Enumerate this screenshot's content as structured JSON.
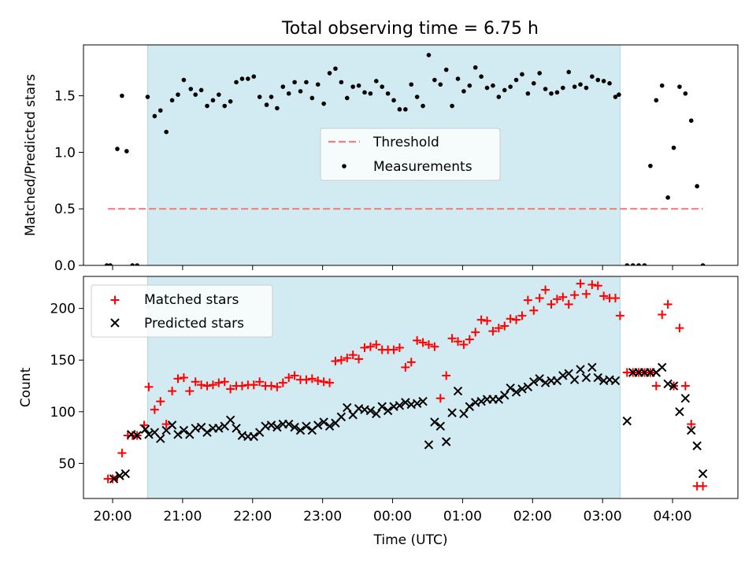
{
  "title": "Total observing time = 6.75 h",
  "colors": {
    "shade": "#add8e6",
    "threshold": "#f08080",
    "measurements": "#000000",
    "matched": "#ff0000",
    "predicted": "#000000"
  },
  "chart_data": [
    {
      "type": "scatter",
      "panel": "top",
      "title": "Total observing time = 6.75 h",
      "xlabel": "",
      "ylabel": "Matched/Predicted stars",
      "xlim": [
        "19:35",
        "04:56"
      ],
      "ylim": [
        0,
        1.95
      ],
      "yticks": [
        0.0,
        0.5,
        1.0,
        1.5
      ],
      "ytick_labels": [
        "0.0",
        "0.5",
        "1.0",
        "1.5"
      ],
      "shaded_interval": [
        "20:30",
        "03:15"
      ],
      "legend": {
        "placement": "center",
        "entries": [
          "Threshold",
          "Measurements"
        ]
      },
      "threshold": {
        "name": "Threshold",
        "style": "dashed",
        "value": 0.5,
        "x_range": [
          "19:56",
          "04:26"
        ]
      },
      "measurements": {
        "name": "Measurements",
        "x": [
          "19:55",
          "19:58",
          "20:04",
          "20:08",
          "20:12",
          "20:17",
          "20:21",
          "20:30",
          "20:36",
          "20:41",
          "20:46",
          "20:51",
          "20:56",
          "21:01",
          "21:07",
          "21:11",
          "21:16",
          "21:21",
          "21:26",
          "21:31",
          "21:36",
          "21:41",
          "21:46",
          "21:51",
          "21:56",
          "22:01",
          "22:06",
          "22:12",
          "22:16",
          "22:21",
          "22:26",
          "22:31",
          "22:36",
          "22:41",
          "22:46",
          "22:51",
          "22:56",
          "23:01",
          "23:06",
          "23:11",
          "23:16",
          "23:21",
          "23:26",
          "23:31",
          "23:36",
          "23:41",
          "23:46",
          "23:51",
          "23:56",
          "00:01",
          "00:06",
          "00:11",
          "00:16",
          "00:21",
          "00:26",
          "00:31",
          "00:36",
          "00:41",
          "00:46",
          "00:51",
          "00:56",
          "01:01",
          "01:06",
          "01:11",
          "01:16",
          "01:21",
          "01:26",
          "01:31",
          "01:36",
          "01:41",
          "01:46",
          "01:51",
          "01:56",
          "02:01",
          "02:06",
          "02:11",
          "02:16",
          "02:21",
          "02:26",
          "02:31",
          "02:36",
          "02:41",
          "02:46",
          "02:51",
          "02:56",
          "03:01",
          "03:06",
          "03:11",
          "03:14",
          "03:21",
          "03:26",
          "03:31",
          "03:36",
          "03:41",
          "03:46",
          "03:51",
          "03:56",
          "04:01",
          "04:06",
          "04:11",
          "04:16",
          "04:21",
          "04:26"
        ],
        "y": [
          0.0,
          0.0,
          1.03,
          1.5,
          1.01,
          0.0,
          0.0,
          1.49,
          1.32,
          1.37,
          1.18,
          1.46,
          1.51,
          1.64,
          1.56,
          1.51,
          1.55,
          1.41,
          1.46,
          1.51,
          1.41,
          1.45,
          1.62,
          1.65,
          1.65,
          1.67,
          1.49,
          1.42,
          1.49,
          1.39,
          1.58,
          1.52,
          1.62,
          1.54,
          1.62,
          1.48,
          1.6,
          1.43,
          1.7,
          1.74,
          1.62,
          1.48,
          1.58,
          1.59,
          1.53,
          1.52,
          1.63,
          1.58,
          1.52,
          1.46,
          1.38,
          1.38,
          1.6,
          1.49,
          1.41,
          1.86,
          1.64,
          1.6,
          1.73,
          1.41,
          1.65,
          1.54,
          1.59,
          1.75,
          1.67,
          1.57,
          1.59,
          1.49,
          1.55,
          1.58,
          1.64,
          1.69,
          1.52,
          1.61,
          1.7,
          1.56,
          1.52,
          1.53,
          1.57,
          1.71,
          1.58,
          1.6,
          1.57,
          1.67,
          1.64,
          1.63,
          1.61,
          1.49,
          1.51,
          0.0,
          0.0,
          0.0,
          0.0,
          0.88,
          1.46,
          1.59,
          0.6,
          1.04,
          1.58,
          1.52,
          1.28,
          0.7,
          0.0
        ]
      }
    },
    {
      "type": "scatter",
      "panel": "bottom",
      "xlabel": "Time (UTC)",
      "ylabel": "Count",
      "xlim": [
        "19:35",
        "04:56"
      ],
      "ylim": [
        16,
        231
      ],
      "xticks": [
        "20:00",
        "21:00",
        "22:00",
        "23:00",
        "00:00",
        "01:00",
        "02:00",
        "03:00",
        "04:00"
      ],
      "yticks": [
        50,
        100,
        150,
        200
      ],
      "ytick_labels": [
        "50",
        "100",
        "150",
        "200"
      ],
      "shaded_interval": [
        "20:30",
        "03:15"
      ],
      "legend": {
        "placement": "top-left",
        "entries": [
          "Matched stars",
          "Predicted stars"
        ]
      },
      "series": [
        {
          "name": "Matched stars",
          "marker": "plus",
          "x": [
            "19:56",
            "20:00",
            "20:04",
            "20:08",
            "20:13",
            "20:17",
            "20:21",
            "20:27",
            "20:31",
            "20:36",
            "20:41",
            "20:46",
            "20:51",
            "20:56",
            "21:01",
            "21:06",
            "21:11",
            "21:16",
            "21:21",
            "21:26",
            "21:31",
            "21:36",
            "21:41",
            "21:46",
            "21:51",
            "21:56",
            "22:01",
            "22:06",
            "22:11",
            "22:16",
            "22:21",
            "22:26",
            "22:31",
            "22:36",
            "22:41",
            "22:46",
            "22:51",
            "22:56",
            "23:01",
            "23:06",
            "23:11",
            "23:16",
            "23:21",
            "23:26",
            "23:31",
            "23:36",
            "23:41",
            "23:46",
            "23:51",
            "23:56",
            "00:01",
            "00:06",
            "00:11",
            "00:16",
            "00:21",
            "00:26",
            "00:31",
            "00:36",
            "00:41",
            "00:46",
            "00:51",
            "00:56",
            "01:01",
            "01:06",
            "01:11",
            "01:16",
            "01:21",
            "01:26",
            "01:31",
            "01:36",
            "01:41",
            "01:46",
            "01:51",
            "01:56",
            "02:01",
            "02:06",
            "02:11",
            "02:16",
            "02:21",
            "02:26",
            "02:31",
            "02:36",
            "02:41",
            "02:46",
            "02:51",
            "02:56",
            "03:01",
            "03:06",
            "03:11",
            "03:15",
            "03:21",
            "03:26",
            "03:31",
            "03:36",
            "03:41",
            "03:46",
            "03:51",
            "03:56",
            "04:01",
            "04:06",
            "04:11",
            "04:16",
            "04:21",
            "04:26"
          ],
          "y": [
            35,
            35,
            37,
            60,
            77,
            77,
            77,
            87,
            124,
            102,
            110,
            88,
            120,
            132,
            133,
            120,
            129,
            126,
            125,
            126,
            128,
            129,
            122,
            125,
            125,
            126,
            126,
            129,
            125,
            125,
            124,
            128,
            133,
            135,
            131,
            131,
            132,
            130,
            129,
            128,
            149,
            150,
            152,
            155,
            151,
            162,
            163,
            165,
            160,
            160,
            160,
            162,
            143,
            148,
            169,
            167,
            165,
            163,
            113,
            135,
            171,
            168,
            165,
            170,
            177,
            189,
            188,
            178,
            181,
            183,
            190,
            189,
            193,
            208,
            198,
            210,
            218,
            204,
            209,
            211,
            204,
            213,
            224,
            214,
            223,
            222,
            212,
            210,
            210,
            193,
            138,
            138,
            138,
            138,
            138,
            125,
            194,
            204,
            125,
            181,
            125,
            88,
            28,
            28
          ]
        },
        {
          "name": "Predicted stars",
          "marker": "x",
          "x": [
            "20:01",
            "20:06",
            "20:11",
            "20:16",
            "20:21",
            "20:28",
            "20:31",
            "20:36",
            "20:41",
            "20:46",
            "20:51",
            "20:56",
            "21:01",
            "21:06",
            "21:11",
            "21:16",
            "21:21",
            "21:26",
            "21:31",
            "21:36",
            "21:41",
            "21:46",
            "21:51",
            "21:56",
            "22:01",
            "22:06",
            "22:11",
            "22:16",
            "22:21",
            "22:26",
            "22:31",
            "22:36",
            "22:41",
            "22:46",
            "22:51",
            "22:56",
            "23:01",
            "23:06",
            "23:11",
            "23:16",
            "23:21",
            "23:26",
            "23:31",
            "23:36",
            "23:41",
            "23:46",
            "23:51",
            "23:56",
            "00:01",
            "00:06",
            "00:11",
            "00:16",
            "00:21",
            "00:26",
            "00:31",
            "00:36",
            "00:41",
            "00:46",
            "00:51",
            "00:56",
            "01:01",
            "01:06",
            "01:11",
            "01:16",
            "01:21",
            "01:26",
            "01:31",
            "01:36",
            "01:41",
            "01:46",
            "01:51",
            "01:56",
            "02:01",
            "02:06",
            "02:11",
            "02:16",
            "02:21",
            "02:26",
            "02:31",
            "02:36",
            "02:41",
            "02:46",
            "02:51",
            "02:56",
            "03:01",
            "03:06",
            "03:11",
            "03:21",
            "03:26",
            "03:31",
            "03:36",
            "03:41",
            "03:46",
            "03:51",
            "03:56",
            "04:01",
            "04:06",
            "04:11",
            "04:16",
            "04:21",
            "04:26"
          ],
          "y": [
            35,
            38,
            40,
            78,
            77,
            83,
            78,
            80,
            74,
            82,
            87,
            78,
            82,
            78,
            84,
            85,
            80,
            84,
            84,
            86,
            92,
            84,
            77,
            76,
            76,
            80,
            86,
            87,
            85,
            88,
            88,
            85,
            82,
            86,
            82,
            87,
            90,
            86,
            89,
            95,
            104,
            97,
            103,
            102,
            101,
            98,
            105,
            101,
            105,
            106,
            109,
            107,
            108,
            110,
            68,
            90,
            86,
            71,
            99,
            120,
            98,
            105,
            109,
            110,
            112,
            112,
            112,
            116,
            123,
            119,
            122,
            124,
            129,
            132,
            128,
            130,
            130,
            135,
            137,
            131,
            141,
            133,
            143,
            133,
            130,
            131,
            130,
            91,
            138,
            138,
            138,
            138,
            138,
            143,
            127,
            125,
            100,
            113,
            82,
            67,
            40
          ]
        }
      ]
    }
  ]
}
